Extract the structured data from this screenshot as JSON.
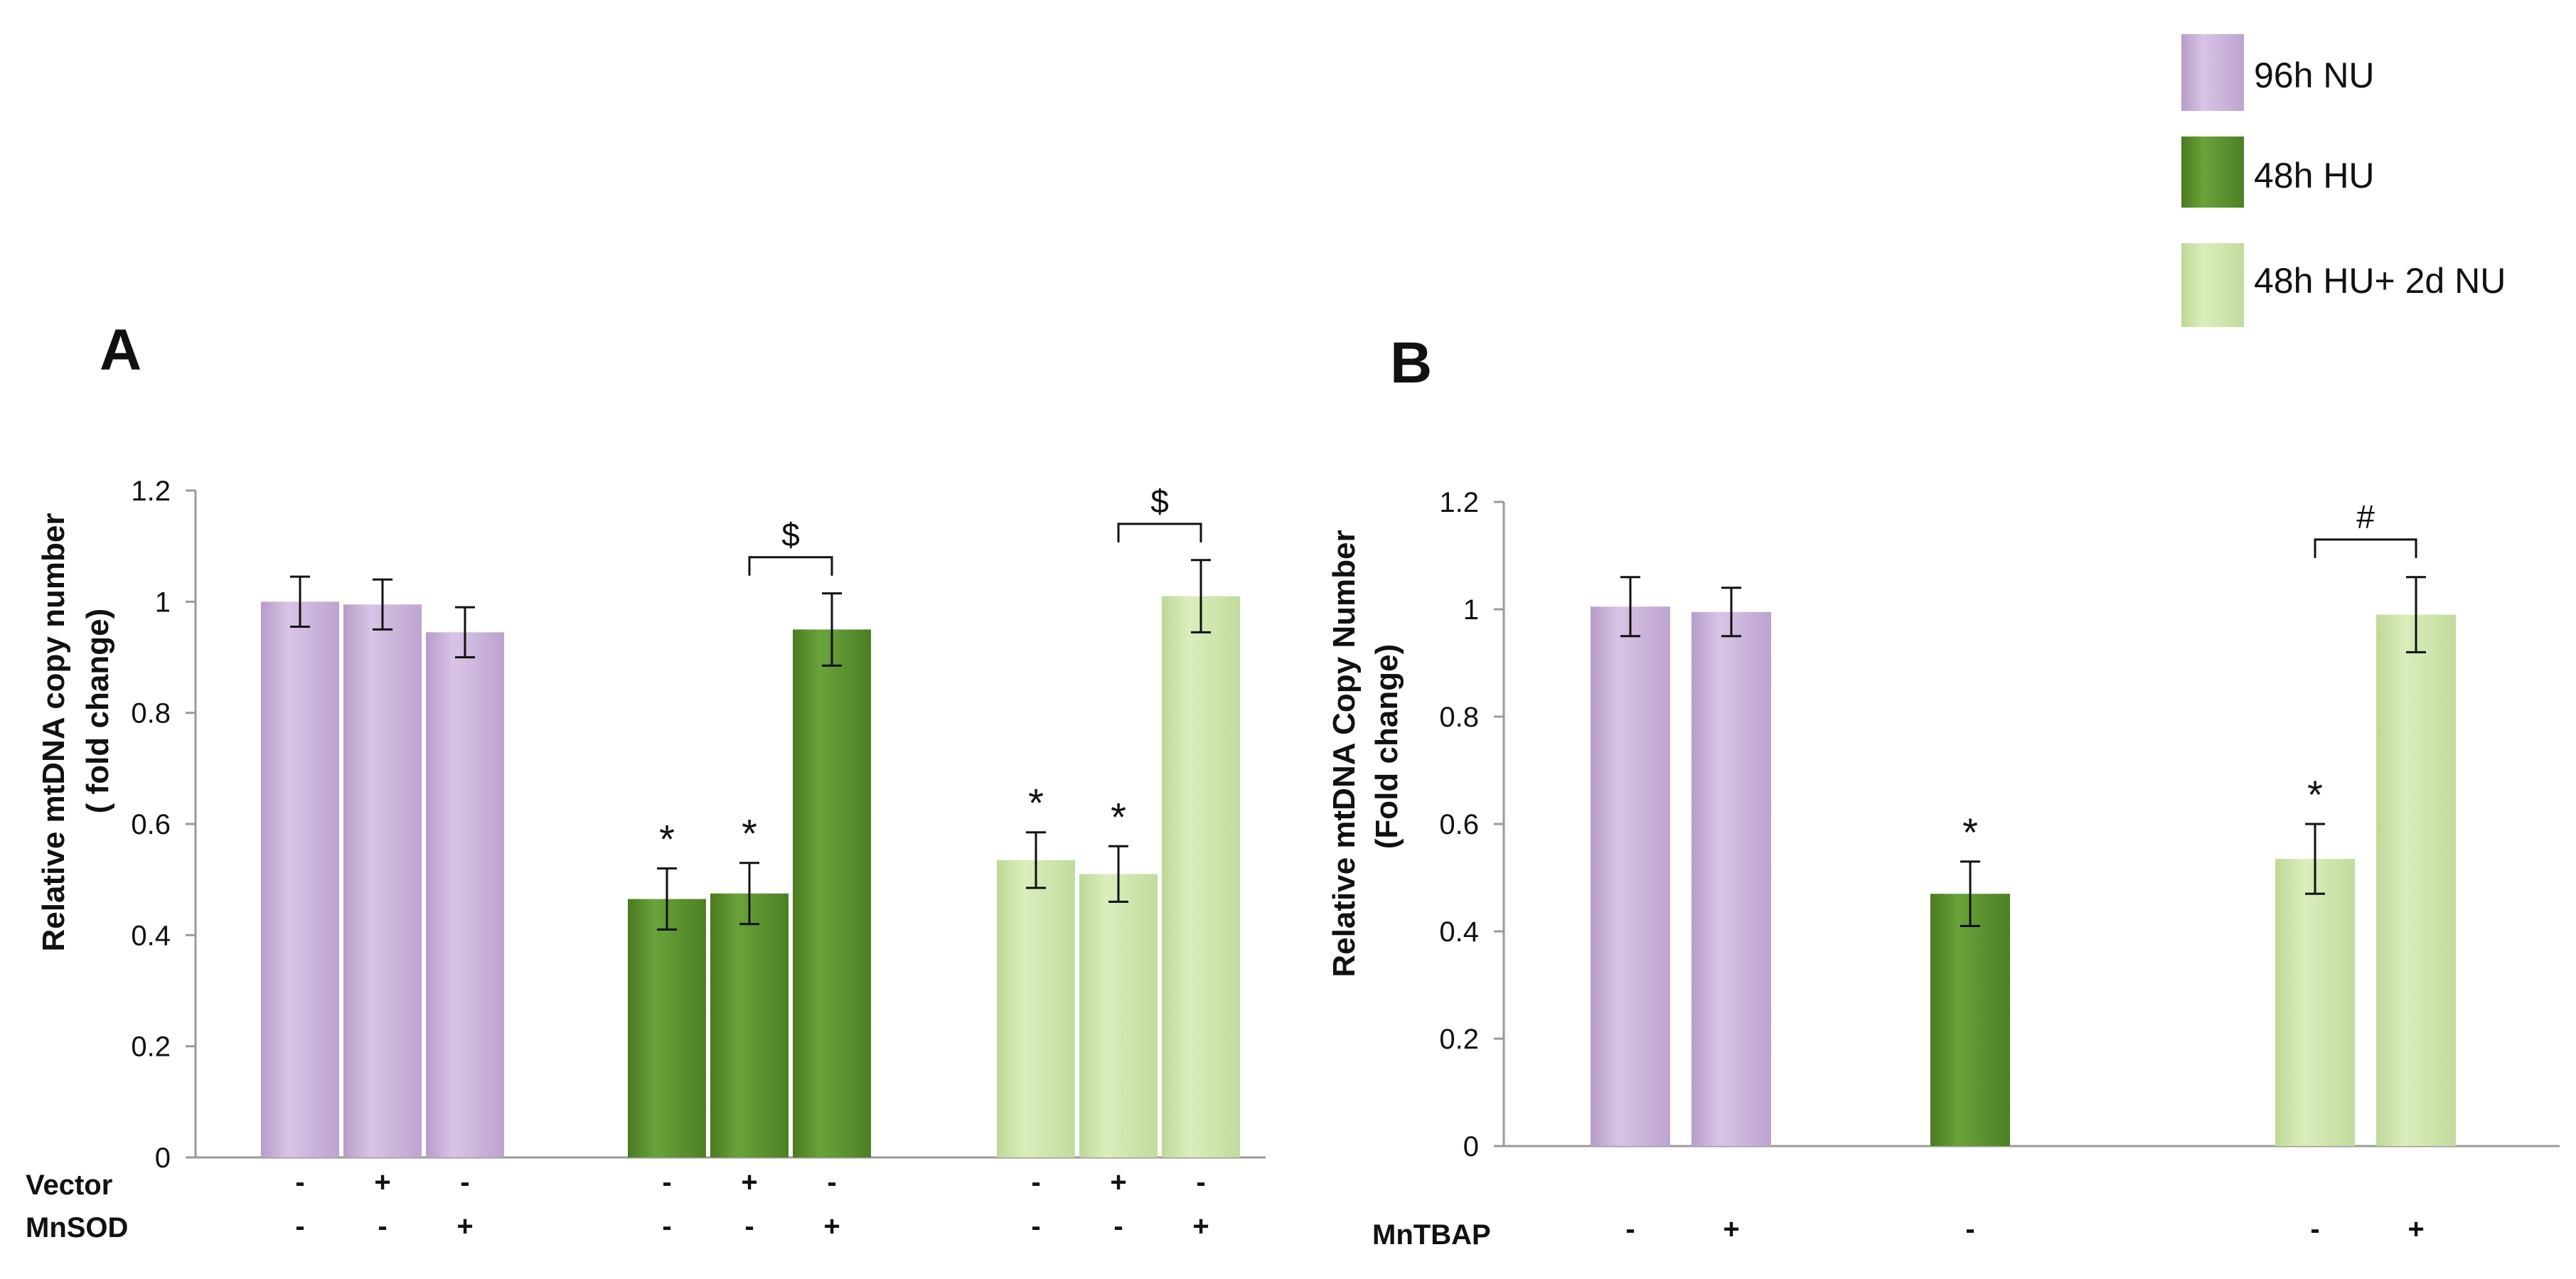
{
  "colors": {
    "purple": "#cdb4dd",
    "dark_green": "#5a8f2b",
    "light_green": "#cfe6ac",
    "axis": "#9a9a9a",
    "text": "#111111"
  },
  "legend": [
    {
      "label": "96h NU",
      "color": "#cdb4dd"
    },
    {
      "label": "48h HU",
      "color": "#5a8f2b"
    },
    {
      "label": "48h HU+ 2d NU",
      "color": "#cfe6ac"
    }
  ],
  "chart_data": [
    {
      "type": "bar",
      "panel_label": "A",
      "ylabel_line1": "Relative mtDNA copy number",
      "ylabel_line2": "( fold change)",
      "ylim": [
        0,
        1.2
      ],
      "y_ticks": [
        "0",
        "0.2",
        "0.4",
        "0.6",
        "0.8",
        "1",
        "1.2"
      ],
      "condition_labels": [
        "Vector",
        "MnSOD"
      ],
      "groups": [
        {
          "series": "96h NU",
          "bars": [
            {
              "value": 1.0,
              "error": 0.045,
              "star": false,
              "cond": [
                "-",
                "-"
              ]
            },
            {
              "value": 0.995,
              "error": 0.045,
              "star": false,
              "cond": [
                "+",
                "-"
              ]
            },
            {
              "value": 0.945,
              "error": 0.045,
              "star": false,
              "cond": [
                "-",
                "+"
              ]
            }
          ]
        },
        {
          "series": "48h HU",
          "bars": [
            {
              "value": 0.465,
              "error": 0.055,
              "star": true,
              "cond": [
                "-",
                "-"
              ]
            },
            {
              "value": 0.475,
              "error": 0.055,
              "star": true,
              "cond": [
                "+",
                "-"
              ]
            },
            {
              "value": 0.95,
              "error": 0.065,
              "star": false,
              "cond": [
                "-",
                "+"
              ]
            }
          ]
        },
        {
          "series": "48h HU+ 2d NU",
          "bars": [
            {
              "value": 0.535,
              "error": 0.05,
              "star": true,
              "cond": [
                "-",
                "-"
              ]
            },
            {
              "value": 0.51,
              "error": 0.05,
              "star": true,
              "cond": [
                "+",
                "-"
              ]
            },
            {
              "value": 1.01,
              "error": 0.065,
              "star": false,
              "cond": [
                "-",
                "+"
              ]
            }
          ]
        }
      ],
      "star_symbol": "*",
      "brackets": [
        {
          "group": 1,
          "from_bar": 1,
          "to_bar": 2,
          "symbol": "$",
          "level": 1.08
        },
        {
          "group": 2,
          "from_bar": 1,
          "to_bar": 2,
          "symbol": "$",
          "level": 1.14
        }
      ]
    },
    {
      "type": "bar",
      "panel_label": "B",
      "ylabel_line1": "Relative mtDNA Copy Number",
      "ylabel_line2": "(Fold change)",
      "ylim": [
        0,
        1.2
      ],
      "y_ticks": [
        "0",
        "0.2",
        "0.4",
        "0.6",
        "0.8",
        "1",
        "1.2"
      ],
      "condition_labels": [
        "MnTBAP"
      ],
      "groups": [
        {
          "series": "96h NU",
          "bars": [
            {
              "value": 1.005,
              "error": 0.055,
              "star": false,
              "cond": [
                "-"
              ]
            },
            {
              "value": 0.995,
              "error": 0.045,
              "star": false,
              "cond": [
                "+"
              ]
            }
          ]
        },
        {
          "series": "48h HU",
          "bars": [
            {
              "value": 0.47,
              "error": 0.06,
              "star": true,
              "cond": [
                "-"
              ]
            }
          ]
        },
        {
          "series": "48h HU+ 2d NU",
          "bars": [
            {
              "value": 0.535,
              "error": 0.065,
              "star": true,
              "cond": [
                "-"
              ]
            },
            {
              "value": 0.99,
              "error": 0.07,
              "star": false,
              "cond": [
                "+"
              ]
            }
          ]
        }
      ],
      "star_symbol": "*",
      "brackets": [
        {
          "group": 2,
          "from_bar": 0,
          "to_bar": 1,
          "symbol": "#",
          "level": 1.13
        }
      ]
    }
  ]
}
